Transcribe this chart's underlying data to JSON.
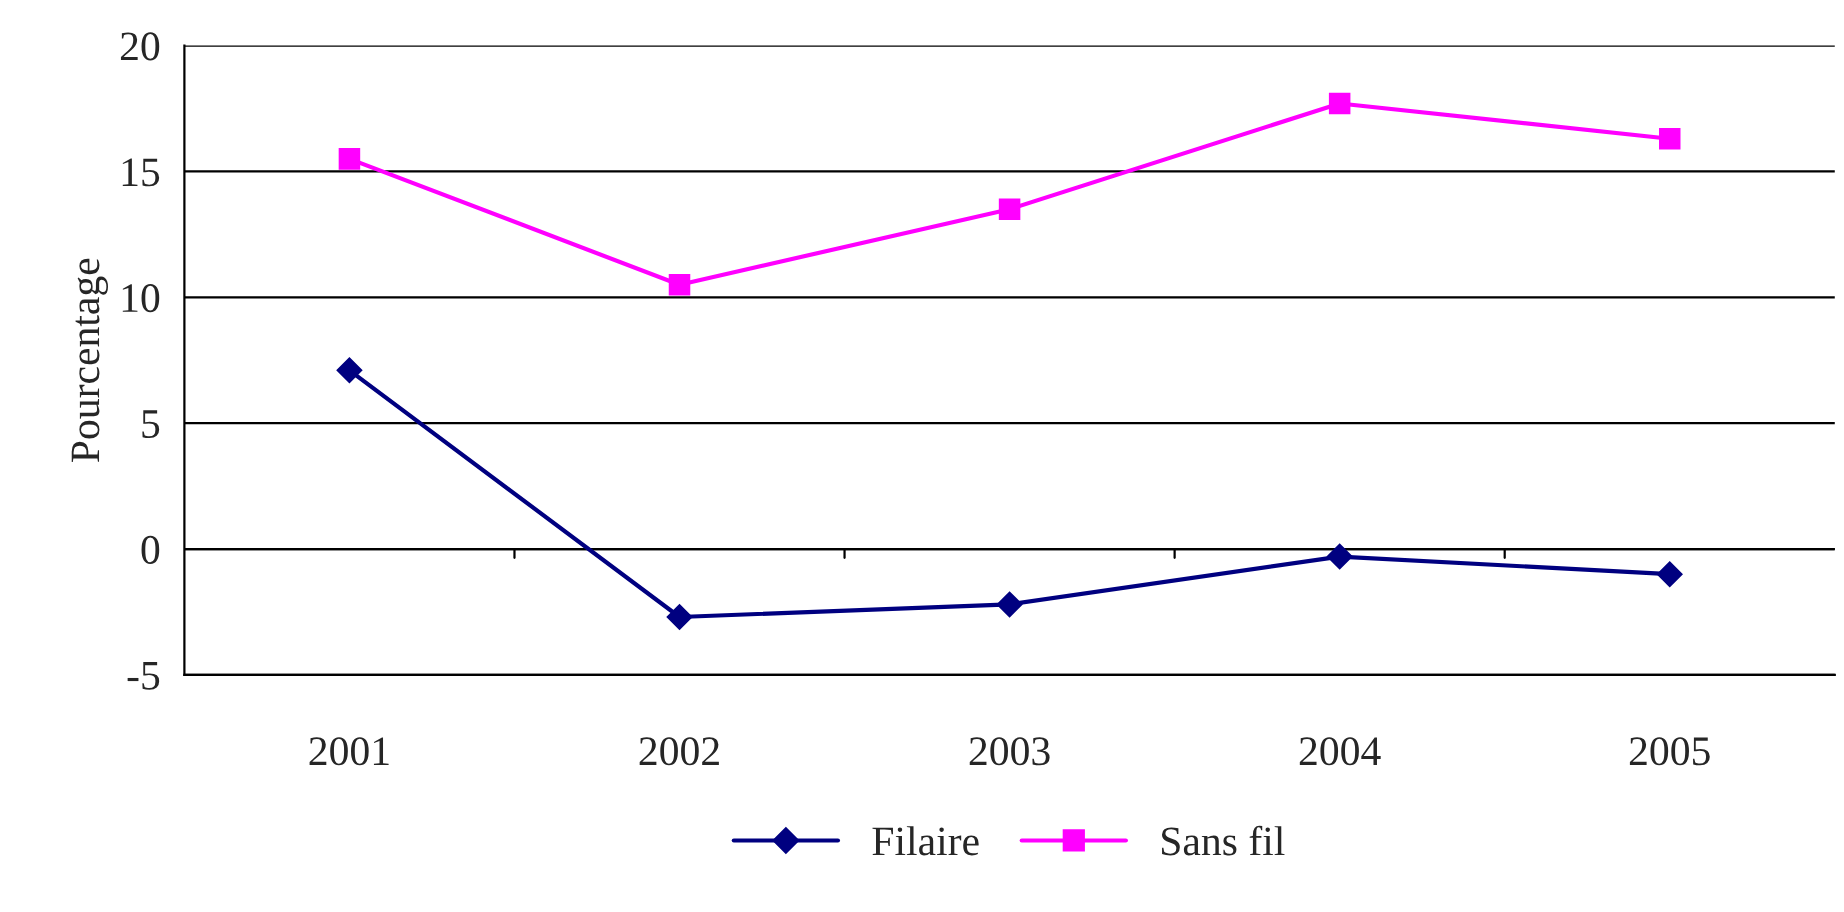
{
  "chart_data": {
    "type": "line",
    "ylabel": "Pourcentage",
    "categories": [
      "2001",
      "2002",
      "2003",
      "2004",
      "2005"
    ],
    "series": [
      {
        "name": "Filaire",
        "color": "#000080",
        "marker": "diamond",
        "values": [
          7.1,
          -2.7,
          -2.2,
          -0.3,
          -1.0
        ]
      },
      {
        "name": "Sans fil",
        "color": "#ff00ff",
        "marker": "square",
        "values": [
          15.5,
          10.5,
          13.5,
          17.7,
          16.3
        ]
      }
    ],
    "ylim": [
      -5,
      20
    ],
    "yticks": [
      -5,
      0,
      5,
      10,
      15,
      20
    ],
    "grid": "y",
    "legend": "bottom",
    "line_style": "solid"
  }
}
